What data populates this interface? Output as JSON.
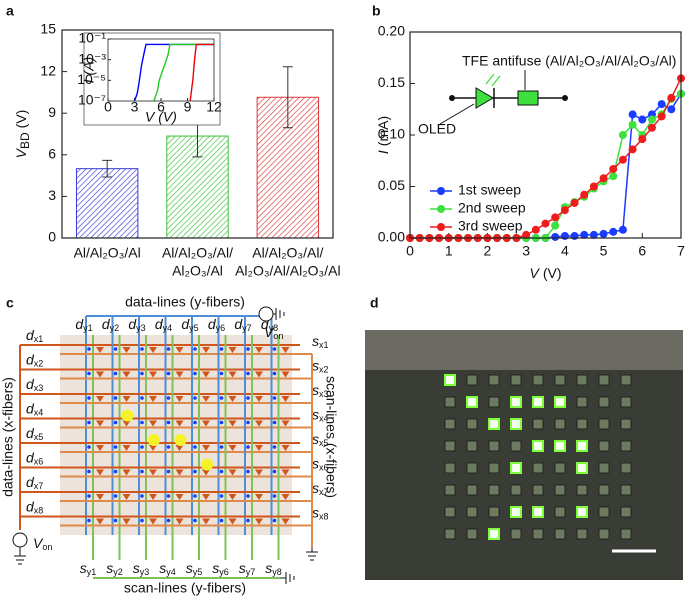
{
  "panel_labels": [
    "a",
    "b",
    "c",
    "d"
  ],
  "chart_data": [
    {
      "type": "bar",
      "y_label": {
        "symbol": "V",
        "subscript": "BD",
        "unit": "(V)"
      },
      "categories": [
        [
          "Al/Al₂O₃/Al"
        ],
        [
          "Al/Al₂O₃/Al/",
          "Al₂O₃/Al"
        ],
        [
          "Al/Al₂O₃/Al/",
          "Al₂O₃/Al/Al₂O₃/Al"
        ]
      ],
      "values": [
        5.0,
        7.35,
        10.15
      ],
      "errors": [
        0.6,
        1.5,
        2.2
      ],
      "colors": [
        "#3a3ad8",
        "#3cc23c",
        "#d83a3a"
      ],
      "ylim": [
        0,
        15
      ],
      "yticks": [
        0,
        3,
        6,
        9,
        12,
        15
      ],
      "inset": {
        "type": "line",
        "log_y": true,
        "x_label": "V (V)",
        "y_label": "I (A)",
        "xlim": [
          0,
          12
        ],
        "xticks": [
          0,
          3,
          6,
          9,
          12
        ],
        "ylim": [
          1e-07,
          0.1
        ],
        "yticks": [
          {
            "value": 1e-07,
            "label": "10⁻⁷"
          },
          {
            "value": 1e-05,
            "label": "10⁻⁵"
          },
          {
            "value": 0.001,
            "label": "10⁻³"
          },
          {
            "value": 0.1,
            "label": "10⁻¹"
          }
        ],
        "series": [
          {
            "color": "#0000ff",
            "x": [
              3.0,
              3.3,
              3.5,
              3.8,
              4.1,
              4.3,
              12
            ],
            "values": [
              1e-07,
              5e-07,
              5e-06,
              0.0003,
              0.005,
              0.03,
              0.03
            ]
          },
          {
            "color": "#22cc22",
            "x": [
              5.2,
              5.6,
              5.8,
              6.2,
              6.5,
              6.8,
              7.0,
              12
            ],
            "values": [
              1e-07,
              1e-06,
              1e-05,
              0.0001,
              0.0005,
              0.003,
              0.03,
              0.03
            ]
          },
          {
            "color": "#ee0000",
            "x": [
              9.3,
              9.6,
              9.8,
              10.0,
              12
            ],
            "values": [
              1e-07,
              1e-05,
              0.001,
              0.03,
              0.03
            ]
          }
        ]
      }
    },
    {
      "type": "line",
      "x_label": {
        "symbol": "V",
        "unit": "(V)"
      },
      "y_label": {
        "symbol": "I",
        "unit": "(mA)"
      },
      "annotations": [
        "TFE antifuse (Al/Al₂O₃/Al/Al₂O₃/Al)",
        "OLED"
      ],
      "x": [
        0,
        0.25,
        0.5,
        0.75,
        1,
        1.25,
        1.5,
        1.75,
        2,
        2.25,
        2.5,
        2.75,
        3,
        3.25,
        3.5,
        3.75,
        4,
        4.25,
        4.5,
        4.75,
        5,
        5.25,
        5.5,
        5.75,
        6,
        6.25,
        6.5,
        6.75,
        7
      ],
      "xlim": [
        0,
        7
      ],
      "xticks": [
        0,
        1,
        2,
        3,
        4,
        5,
        6,
        7
      ],
      "ylim": [
        0,
        0.2
      ],
      "yticks": [
        {
          "value": 0,
          "label": "0.00"
        },
        {
          "value": 0.05,
          "label": "0.05"
        },
        {
          "value": 0.1,
          "label": "0.10"
        },
        {
          "value": 0.15,
          "label": "0.15"
        },
        {
          "value": 0.2,
          "label": "0.20"
        }
      ],
      "series": [
        {
          "name": "1st sweep",
          "color": "#1a3cff",
          "values": [
            0,
            0,
            0,
            0,
            0,
            0,
            0,
            0,
            0,
            0,
            0,
            0,
            0,
            0,
            0,
            0.001,
            0.002,
            0.002,
            0.003,
            0.003,
            0.004,
            0.006,
            0.008,
            0.12,
            0.115,
            0.12,
            0.13,
            0.125,
            0.14
          ]
        },
        {
          "name": "2nd sweep",
          "color": "#3ee03e",
          "values": [
            0,
            0,
            0,
            0,
            0,
            0,
            0,
            0,
            0,
            0,
            0,
            0,
            0,
            0,
            0,
            0.012,
            0.03,
            0.035,
            0.04,
            0.048,
            0.055,
            0.06,
            0.1,
            0.11,
            0.1,
            0.115,
            0.12,
            0.135,
            0.14
          ]
        },
        {
          "name": "3rd sweep",
          "color": "#ee1c1c",
          "values": [
            0,
            0,
            0,
            0,
            0,
            0,
            0,
            0,
            0,
            0,
            0,
            0,
            0.003,
            0.008,
            0.014,
            0.02,
            0.027,
            0.034,
            0.042,
            0.05,
            0.058,
            0.067,
            0.076,
            0.086,
            0.096,
            0.107,
            0.118,
            0.136,
            0.155
          ]
        }
      ]
    }
  ],
  "diagram": {
    "top_title": "data-lines (y-fibers)",
    "bottom_title": "scan-lines (y-fibers)",
    "left_title": "data-lines (x-fibers)",
    "right_title": "scan-lines (x-fibers)",
    "source": {
      "symbol": "V",
      "subscript": "on"
    },
    "top_labels": [
      {
        "symbol": "d",
        "subscript": "y1"
      },
      {
        "symbol": "d",
        "subscript": "y2"
      },
      {
        "symbol": "d",
        "subscript": "y3"
      },
      {
        "symbol": "d",
        "subscript": "y4"
      },
      {
        "symbol": "d",
        "subscript": "y5"
      },
      {
        "symbol": "d",
        "subscript": "y6"
      },
      {
        "symbol": "d",
        "subscript": "y7"
      },
      {
        "symbol": "d",
        "subscript": "y8"
      }
    ],
    "bottom_labels": [
      {
        "symbol": "s",
        "subscript": "y1"
      },
      {
        "symbol": "s",
        "subscript": "y2"
      },
      {
        "symbol": "s",
        "subscript": "y3"
      },
      {
        "symbol": "s",
        "subscript": "y4"
      },
      {
        "symbol": "s",
        "subscript": "y5"
      },
      {
        "symbol": "s",
        "subscript": "y6"
      },
      {
        "symbol": "s",
        "subscript": "y7"
      },
      {
        "symbol": "s",
        "subscript": "y8"
      }
    ],
    "left_labels": [
      {
        "symbol": "d",
        "subscript": "x1"
      },
      {
        "symbol": "d",
        "subscript": "x2"
      },
      {
        "symbol": "d",
        "subscript": "x3"
      },
      {
        "symbol": "d",
        "subscript": "x4"
      },
      {
        "symbol": "d",
        "subscript": "x5"
      },
      {
        "symbol": "d",
        "subscript": "x6"
      },
      {
        "symbol": "d",
        "subscript": "x7"
      },
      {
        "symbol": "d",
        "subscript": "x8"
      }
    ],
    "right_labels": [
      {
        "symbol": "s",
        "subscript": "x1"
      },
      {
        "symbol": "s",
        "subscript": "x2"
      },
      {
        "symbol": "s",
        "subscript": "x3"
      },
      {
        "symbol": "s",
        "subscript": "x4"
      },
      {
        "symbol": "s",
        "subscript": "x5"
      },
      {
        "symbol": "s",
        "subscript": "x6"
      },
      {
        "symbol": "s",
        "subscript": "x7"
      },
      {
        "symbol": "s",
        "subscript": "x8"
      }
    ]
  }
}
